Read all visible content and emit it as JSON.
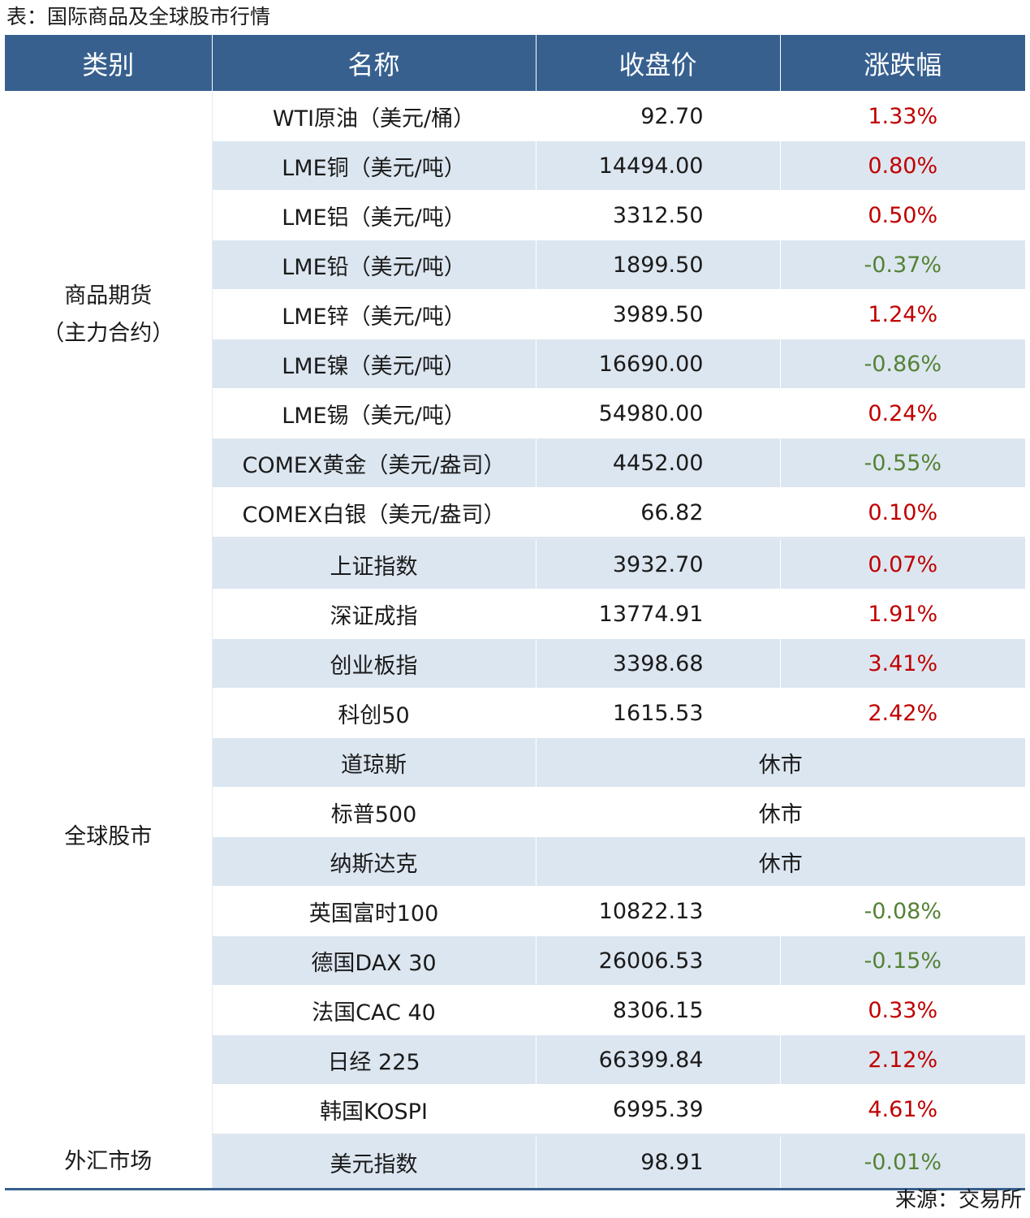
{
  "caption": "表：国际商品及全球股市行情",
  "source": "来源：交易所",
  "colors": {
    "header_bg": "#37608f",
    "row_alt": "#dce6f0",
    "up": "#c00000",
    "down": "#548235"
  },
  "headers": [
    "类别",
    "名称",
    "收盘价",
    "涨跌幅"
  ],
  "groups": [
    {
      "category_lines": [
        "商品期货",
        "（主力合约）"
      ],
      "rows": [
        {
          "name": "WTI原油（美元/桶）",
          "close": "92.70",
          "change": "1.33%",
          "dir": "up"
        },
        {
          "name": "LME铜（美元/吨）",
          "close": "14494.00",
          "change": "0.80%",
          "dir": "up"
        },
        {
          "name": "LME铝（美元/吨）",
          "close": "3312.50",
          "change": "0.50%",
          "dir": "up"
        },
        {
          "name": "LME铅（美元/吨）",
          "close": "1899.50",
          "change": "-0.37%",
          "dir": "down"
        },
        {
          "name": "LME锌（美元/吨）",
          "close": "3989.50",
          "change": "1.24%",
          "dir": "up"
        },
        {
          "name": "LME镍（美元/吨）",
          "close": "16690.00",
          "change": "-0.86%",
          "dir": "down"
        },
        {
          "name": "LME锡（美元/吨）",
          "close": "54980.00",
          "change": "0.24%",
          "dir": "up"
        },
        {
          "name": "COMEX黄金（美元/盎司）",
          "close": "4452.00",
          "change": "-0.55%",
          "dir": "down"
        },
        {
          "name": "COMEX白银（美元/盎司）",
          "close": "66.82",
          "change": "0.10%",
          "dir": "up"
        }
      ]
    },
    {
      "category_lines": [
        "全球股市"
      ],
      "rows": [
        {
          "name": "上证指数",
          "close": "3932.70",
          "change": "0.07%",
          "dir": "up"
        },
        {
          "name": "深证成指",
          "close": "13774.91",
          "change": "1.91%",
          "dir": "up"
        },
        {
          "name": "创业板指",
          "close": "3398.68",
          "change": "3.41%",
          "dir": "up"
        },
        {
          "name": "科创50",
          "close": "1615.53",
          "change": "2.42%",
          "dir": "up"
        },
        {
          "name": "道琼斯",
          "closed": "休市"
        },
        {
          "name": "标普500",
          "closed": "休市"
        },
        {
          "name": "纳斯达克",
          "closed": "休市"
        },
        {
          "name": "英国富时100",
          "close": "10822.13",
          "change": "-0.08%",
          "dir": "down"
        },
        {
          "name": "德国DAX 30",
          "close": "26006.53",
          "change": "-0.15%",
          "dir": "down"
        },
        {
          "name": "法国CAC 40",
          "close": "8306.15",
          "change": "0.33%",
          "dir": "up"
        },
        {
          "name": "日经 225",
          "close": "66399.84",
          "change": "2.12%",
          "dir": "up"
        },
        {
          "name": "韩国KOSPI",
          "close": "6995.39",
          "change": "4.61%",
          "dir": "up"
        }
      ]
    },
    {
      "category_lines": [
        "外汇市场"
      ],
      "rows": [
        {
          "name": "美元指数",
          "close": "98.91",
          "change": "-0.01%",
          "dir": "down"
        }
      ]
    }
  ]
}
